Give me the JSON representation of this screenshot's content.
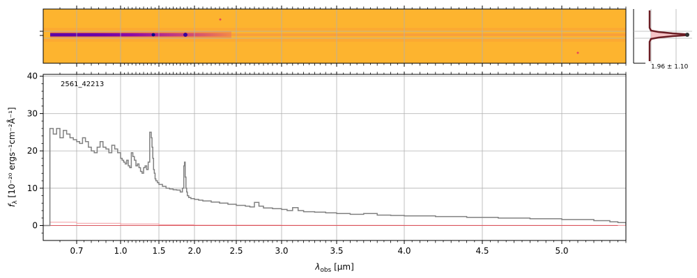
{
  "chart_data": [
    {
      "type": "heatmap",
      "description_role": "2D spectrum",
      "colormap": "plasma",
      "trace_color": "#6a00a8",
      "background_color": "#fdb42f",
      "grid": true
    },
    {
      "type": "line",
      "role": "spatial profile",
      "annotation": "1.96 ± 1.10",
      "profile_color": "#6b1d24",
      "fill_color": "#f4b8bc",
      "grid": true
    },
    {
      "type": "line",
      "annotation": "2561_42213",
      "xlabel_math": "λ",
      "xlabel_sub": "obs",
      "xlabel_unit": " [μm]",
      "ylabel_main": "f",
      "ylabel_sub": "λ",
      "ylabel_unit": " [10⁻²⁰ ergs⁻¹cm⁻²Å⁻¹]",
      "xscale": "log-like (spectral)",
      "xlim": [
        0.6,
        5.4
      ],
      "ylim": [
        -4,
        40.5
      ],
      "xticks": [
        0.7,
        1.0,
        1.5,
        2.0,
        2.5,
        3.0,
        3.5,
        4.0,
        4.5,
        5.0
      ],
      "xtick_labels": [
        "0.7",
        "1.0",
        "1.5",
        "2.0",
        "2.5",
        "3.0",
        "3.5",
        "4.0",
        "4.5",
        "5.0"
      ],
      "yticks": [
        0,
        10,
        20,
        30,
        40
      ],
      "ytick_labels": [
        "0",
        "10",
        "20",
        "30",
        "40"
      ],
      "grid": true,
      "series": [
        {
          "role": "flux",
          "color": "#808080",
          "x": [
            0.6,
            0.62,
            0.63,
            0.64,
            0.65,
            0.66,
            0.67,
            0.68,
            0.69,
            0.7,
            0.72,
            0.74,
            0.76,
            0.78,
            0.8,
            0.82,
            0.84,
            0.86,
            0.88,
            0.9,
            0.92,
            0.94,
            0.96,
            0.98,
            1.0,
            1.02,
            1.04,
            1.06,
            1.08,
            1.1,
            1.12,
            1.14,
            1.16,
            1.18,
            1.2,
            1.22,
            1.24,
            1.26,
            1.28,
            1.3,
            1.32,
            1.34,
            1.36,
            1.38,
            1.4,
            1.41,
            1.42,
            1.43,
            1.44,
            1.45,
            1.46,
            1.48,
            1.5,
            1.55,
            1.6,
            1.65,
            1.7,
            1.75,
            1.8,
            1.83,
            1.85,
            1.86,
            1.87,
            1.88,
            1.89,
            1.9,
            1.92,
            1.95,
            2.0,
            2.05,
            2.1,
            2.2,
            2.3,
            2.4,
            2.5,
            2.6,
            2.65,
            2.7,
            2.75,
            2.8,
            2.9,
            3.0,
            3.05,
            3.1,
            3.15,
            3.2,
            3.3,
            3.4,
            3.5,
            3.6,
            3.65,
            3.7,
            3.8,
            3.9,
            4.0,
            4.2,
            4.4,
            4.6,
            4.8,
            5.0,
            5.2,
            5.3,
            5.35,
            5.4
          ],
          "y": [
            0,
            26.0,
            24.5,
            26.0,
            23.5,
            25.5,
            24.5,
            23.5,
            23.0,
            22.5,
            22.0,
            23.5,
            22.5,
            21.0,
            20.0,
            19.5,
            21.0,
            22.5,
            21.0,
            20.5,
            19.5,
            21.5,
            20.5,
            19.5,
            18.0,
            17.5,
            17.0,
            16.5,
            17.5,
            16.0,
            15.5,
            19.5,
            18.5,
            17.5,
            16.0,
            16.5,
            15.5,
            14.5,
            14.0,
            15.5,
            16.0,
            15.0,
            17.0,
            25.0,
            23.5,
            21.0,
            18.0,
            15.0,
            14.0,
            12.5,
            12.0,
            11.5,
            11.0,
            10.5,
            10.0,
            9.8,
            9.6,
            9.5,
            9.0,
            10.0,
            16.0,
            17.0,
            13.0,
            10.0,
            9.0,
            8.0,
            7.5,
            7.2,
            7.0,
            6.8,
            6.6,
            6.3,
            6.0,
            5.7,
            5.4,
            5.2,
            5.0,
            6.2,
            5.2,
            4.7,
            4.5,
            4.3,
            4.0,
            4.8,
            4.0,
            3.7,
            3.6,
            3.4,
            3.2,
            3.0,
            3.0,
            3.2,
            2.8,
            2.7,
            2.6,
            2.4,
            2.2,
            2.0,
            1.8,
            1.6,
            1.3,
            1.0,
            0.8,
            0.0
          ]
        },
        {
          "role": "error",
          "color": "#f4a6ab",
          "x": [
            0.6,
            0.62,
            0.7,
            1.0,
            1.5,
            2.0,
            3.0,
            4.0,
            5.0,
            5.4
          ],
          "y": [
            0.0,
            0.9,
            0.6,
            0.4,
            0.2,
            0.1,
            0.05,
            0.03,
            0.02,
            0.0
          ]
        },
        {
          "role": "zero level",
          "color": "#d9545c",
          "x": [
            0.62,
            5.35
          ],
          "y": [
            0,
            0
          ]
        }
      ]
    }
  ]
}
